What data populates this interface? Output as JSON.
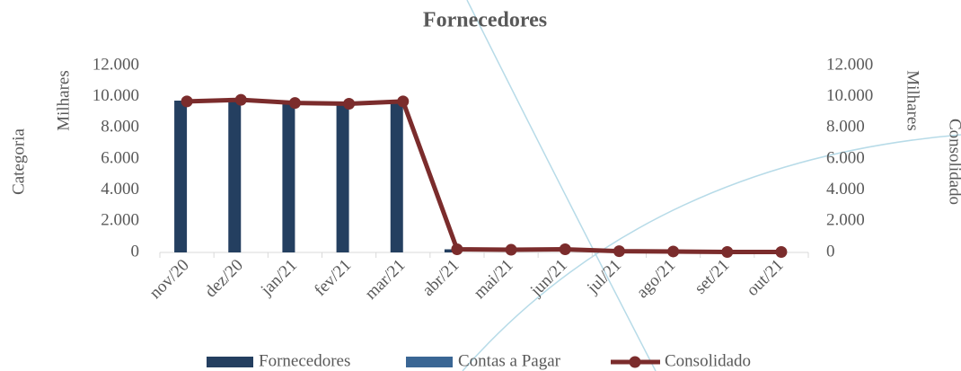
{
  "chart_data": {
    "type": "bar",
    "title": "Fornecedores",
    "ylabel": "Categoria",
    "y_unit": "Milhares",
    "y2label": "Consolidado",
    "y2_unit": "Milhares",
    "categories": [
      "nov/20",
      "dez/20",
      "jan/21",
      "fev/21",
      "mar/21",
      "abr/21",
      "mai/21",
      "jun/21",
      "jul/21",
      "ago/21",
      "set/21",
      "out/21"
    ],
    "series": [
      {
        "name": "Fornecedores",
        "type": "bar",
        "color": "#243f60",
        "values": [
          9750,
          9800,
          9650,
          9600,
          9750,
          200,
          0,
          0,
          0,
          0,
          0,
          0
        ]
      },
      {
        "name": "Contas a Pagar",
        "type": "bar",
        "color": "#3a6694",
        "values": [
          0,
          0,
          0,
          0,
          0,
          0,
          0,
          0,
          0,
          0,
          0,
          0
        ]
      },
      {
        "name": "Consolidado",
        "type": "line",
        "axis": "y2",
        "color": "#7b2c2c",
        "values": [
          9700,
          9800,
          9600,
          9550,
          9700,
          200,
          170,
          200,
          80,
          60,
          30,
          30
        ]
      }
    ],
    "ylim": [
      0,
      12000
    ],
    "yticks": [
      0,
      {
        "value": 2000,
        "label": "2.000"
      },
      {
        "value": 4000,
        "label": "4.000"
      },
      {
        "value": 6000,
        "label": "6.000"
      },
      {
        "value": 8000,
        "label": "8.000"
      },
      {
        "value": 10000,
        "label": "10.000"
      },
      {
        "value": 12000,
        "label": "12.000"
      }
    ],
    "y2lim": [
      0,
      12000
    ],
    "y2ticks": [
      0,
      {
        "value": 2000,
        "label": "2.000"
      },
      {
        "value": 4000,
        "label": "4.000"
      },
      {
        "value": 6000,
        "label": "6.000"
      },
      {
        "value": 8000,
        "label": "8.000"
      },
      {
        "value": 10000,
        "label": "10.000"
      },
      {
        "value": 12000,
        "label": "12.000"
      }
    ],
    "legend": "bottom"
  }
}
